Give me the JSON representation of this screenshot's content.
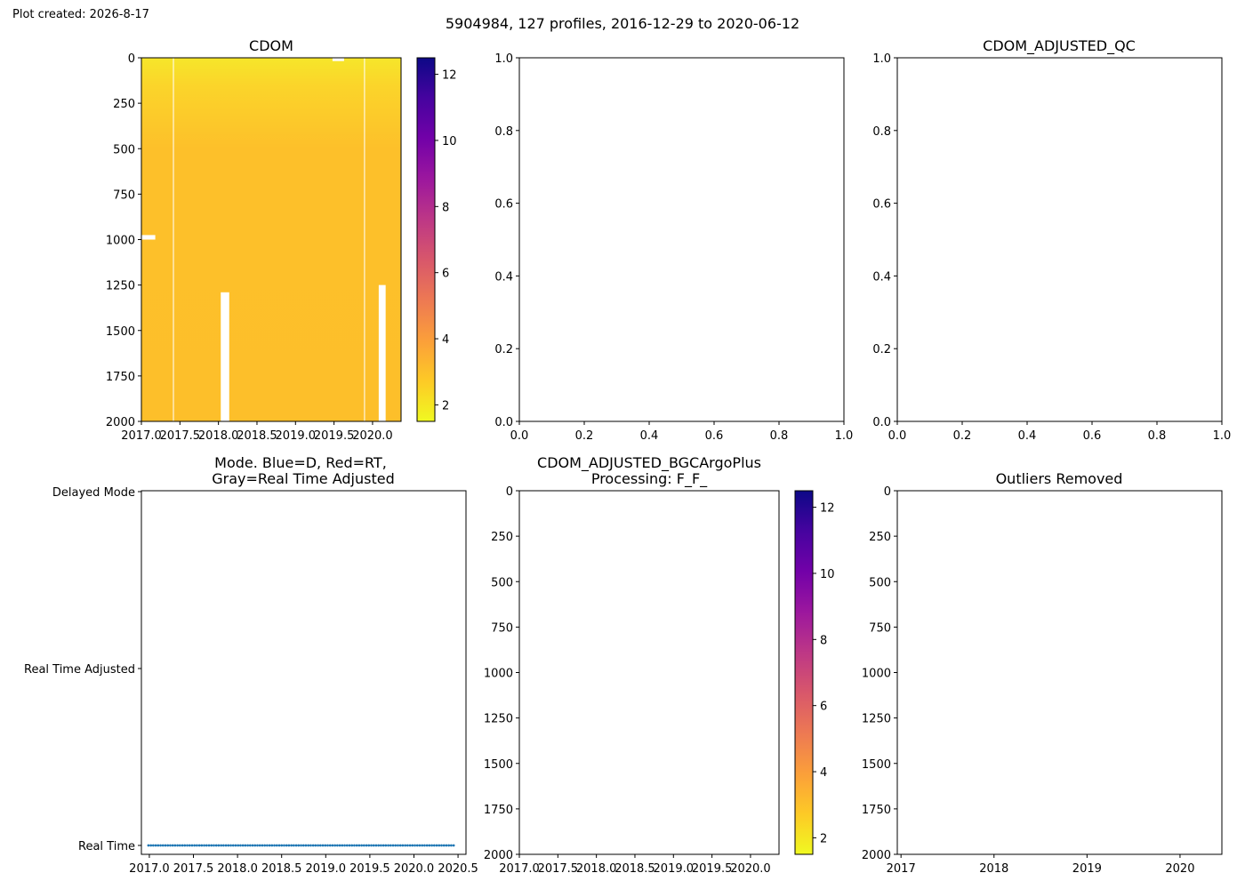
{
  "figure": {
    "created": "Plot created: 2026-8-17",
    "suptitle": "5904984, 127 profiles, 2016-12-29 to 2020-06-12"
  },
  "colormap": [
    "#f0f921",
    "#fdca26",
    "#fb9f3a",
    "#ed7953",
    "#d8576b",
    "#bd3786",
    "#9c179e",
    "#7201a8",
    "#46039f",
    "#0d0887"
  ],
  "chart_data": [
    {
      "id": "cdom",
      "type": "heatmap",
      "title": "CDOM",
      "xlim": [
        2017.0,
        2020.37
      ],
      "ylim": [
        2000,
        0
      ],
      "y_inverted": true,
      "x_ticks": [
        2017.0,
        2017.5,
        2018.0,
        2018.5,
        2019.0,
        2019.5,
        2020.0
      ],
      "x_tick_labels": [
        "2017.0",
        "2017.5",
        "2018.0",
        "2018.5",
        "2019.0",
        "2019.5",
        "2020.0"
      ],
      "y_ticks": [
        0,
        250,
        500,
        750,
        1000,
        1250,
        1500,
        1750,
        2000
      ],
      "y_tick_labels": [
        "0",
        "250",
        "500",
        "750",
        "1000",
        "1250",
        "1500",
        "1750",
        "2000"
      ],
      "colorbar": {
        "range": [
          1.5,
          12.5
        ],
        "ticks": [
          2,
          4,
          6,
          8,
          10,
          12
        ],
        "tick_labels": [
          "2",
          "4",
          "6",
          "8",
          "10",
          "12"
        ]
      },
      "approx_value": 3.0,
      "near_surface_value": 2.2,
      "missing_regions": [
        {
          "x": [
            2017.41,
            2017.42
          ],
          "y": [
            0,
            2000
          ]
        },
        {
          "x": [
            2019.89,
            2019.9
          ],
          "y": [
            0,
            2000
          ]
        },
        {
          "x": [
            2018.03,
            2018.14
          ],
          "y": [
            1290,
            2000
          ]
        },
        {
          "x": [
            2017.0,
            2017.18
          ],
          "y": [
            975,
            1000
          ]
        },
        {
          "x": [
            2020.08,
            2020.17
          ],
          "y": [
            1250,
            2000
          ]
        },
        {
          "x": [
            2019.48,
            2019.63
          ],
          "y": [
            0,
            18
          ]
        }
      ]
    },
    {
      "id": "empty-top-middle",
      "type": "scatter",
      "title": "",
      "xlim": [
        0,
        1
      ],
      "ylim": [
        0,
        1
      ],
      "x_tick_labels": [
        "0.0",
        "0.2",
        "0.4",
        "0.6",
        "0.8",
        "1.0"
      ],
      "y_tick_labels": [
        "0.0",
        "0.2",
        "0.4",
        "0.6",
        "0.8",
        "1.0"
      ],
      "series": []
    },
    {
      "id": "cdom-adjusted-qc",
      "type": "scatter",
      "title": "CDOM_ADJUSTED_QC",
      "xlim": [
        0,
        1
      ],
      "ylim": [
        0,
        1
      ],
      "x_tick_labels": [
        "0.0",
        "0.2",
        "0.4",
        "0.6",
        "0.8",
        "1.0"
      ],
      "y_tick_labels": [
        "0.0",
        "0.2",
        "0.4",
        "0.6",
        "0.8",
        "1.0"
      ],
      "series": []
    },
    {
      "id": "mode",
      "type": "scatter",
      "title_line1": "Mode. Blue=D, Red=RT,",
      "title_line2": "Gray=Real Time Adjusted",
      "xlim": [
        2016.91,
        2020.59
      ],
      "x_ticks": [
        2017.0,
        2017.5,
        2018.0,
        2018.5,
        2019.0,
        2019.5,
        2020.0,
        2020.5
      ],
      "x_tick_labels": [
        "2017.0",
        "2017.5",
        "2018.0",
        "2018.5",
        "2019.0",
        "2019.5",
        "2020.0",
        "2020.5"
      ],
      "y_categories": [
        "Real Time",
        "Real Time Adjusted",
        "Delayed Mode"
      ],
      "point_count": 127,
      "x_range": [
        2016.99,
        2020.45
      ],
      "y_value": "Real Time",
      "color": "#1f77b4"
    },
    {
      "id": "cdom-adjusted-bgc",
      "type": "heatmap",
      "title_line1": "CDOM_ADJUSTED_BGCArgoPlus",
      "title_line2": "Processing: F_F_",
      "xlim": [
        2017.0,
        2020.37
      ],
      "ylim": [
        2000,
        0
      ],
      "x_tick_labels": [
        "2017.0",
        "2017.5",
        "2018.0",
        "2018.5",
        "2019.0",
        "2019.5",
        "2020.0"
      ],
      "y_tick_labels": [
        "0",
        "250",
        "500",
        "750",
        "1000",
        "1250",
        "1500",
        "1750",
        "2000"
      ],
      "colorbar": {
        "range": [
          1.5,
          12.5
        ],
        "ticks": [
          2,
          4,
          6,
          8,
          10,
          12
        ],
        "tick_labels": [
          "2",
          "4",
          "6",
          "8",
          "10",
          "12"
        ]
      },
      "values": []
    },
    {
      "id": "outliers-removed",
      "type": "scatter",
      "title": "Outliers Removed",
      "xlim": [
        2016.96,
        2020.45
      ],
      "ylim": [
        2000,
        0
      ],
      "x_ticks": [
        2017,
        2018,
        2019,
        2020
      ],
      "x_tick_labels": [
        "2017",
        "2018",
        "2019",
        "2020"
      ],
      "y_tick_labels": [
        "0",
        "250",
        "500",
        "750",
        "1000",
        "1250",
        "1500",
        "1750",
        "2000"
      ],
      "series": []
    }
  ]
}
